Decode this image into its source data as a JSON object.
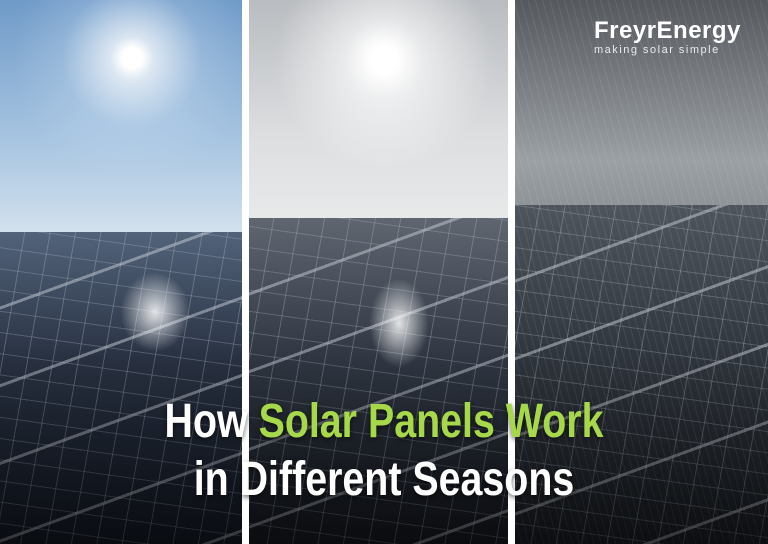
{
  "image": {
    "panels": [
      {
        "scene": "sunny clear sky over solar panels"
      },
      {
        "scene": "hazy bright sky over solar panels"
      },
      {
        "scene": "rain over wet solar panels"
      }
    ]
  },
  "logo": {
    "name": "FreyrEnergy",
    "tagline": "making solar simple"
  },
  "headline": {
    "line1_prefix": "How",
    "line1_highlight": "Solar Panels Work",
    "line2": "in Different Seasons"
  },
  "colors": {
    "highlight": "#a6d84a",
    "text": "#ffffff",
    "divider": "#ffffff"
  }
}
